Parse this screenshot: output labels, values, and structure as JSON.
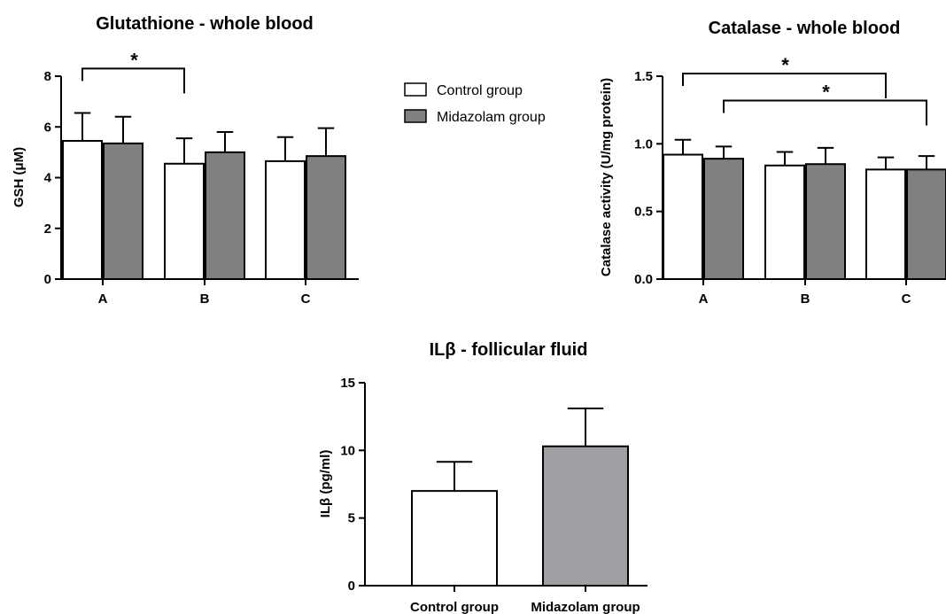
{
  "legend": {
    "items": [
      {
        "label": "Control group",
        "color": "#ffffff"
      },
      {
        "label": "Midazolam group",
        "color": "#808080"
      }
    ]
  },
  "chart_data": [
    {
      "id": "gsh",
      "type": "bar",
      "title": "Glutathione - whole blood",
      "ylabel": "GSH (μM)",
      "xlabel": "",
      "categories": [
        "A",
        "B",
        "C"
      ],
      "ylim": [
        0,
        8
      ],
      "yticks": [
        0,
        2,
        4,
        6,
        8
      ],
      "series": [
        {
          "name": "Control group",
          "color": "#ffffff",
          "values": [
            5.45,
            4.55,
            4.65
          ],
          "errors": [
            1.1,
            1.0,
            0.95
          ]
        },
        {
          "name": "Midazolam group",
          "color": "#808080",
          "values": [
            5.35,
            5.0,
            4.85
          ],
          "errors": [
            1.05,
            0.8,
            1.1
          ]
        }
      ],
      "annotations": [
        {
          "text": "*",
          "from_category": 0,
          "to_category": 1,
          "from_series": 0,
          "to_series": 0,
          "y": 8.3
        }
      ]
    },
    {
      "id": "catalase",
      "type": "bar",
      "title": "Catalase - whole blood",
      "ylabel": "Catalase activity (U/mg protein)",
      "xlabel": "",
      "categories": [
        "A",
        "B",
        "C"
      ],
      "ylim": [
        0,
        1.5
      ],
      "yticks": [
        "0.0",
        "0.5",
        "1.0",
        "1.5"
      ],
      "series": [
        {
          "name": "Control group",
          "color": "#ffffff",
          "values": [
            0.92,
            0.84,
            0.81
          ],
          "errors": [
            0.11,
            0.1,
            0.09
          ]
        },
        {
          "name": "Midazolam group",
          "color": "#808080",
          "values": [
            0.89,
            0.85,
            0.81
          ],
          "errors": [
            0.09,
            0.12,
            0.1
          ]
        }
      ],
      "annotations": [
        {
          "text": "*",
          "from_category": 0,
          "to_category": 2,
          "from_series": 0,
          "to_series": 0,
          "y": 1.52
        },
        {
          "text": "*",
          "from_category": 0,
          "to_category": 2,
          "from_series": 1,
          "to_series": 1,
          "y": 1.32
        }
      ]
    },
    {
      "id": "il",
      "type": "bar",
      "title": "ILβ - follicular fluid",
      "ylabel": "ILβ (pg/ml)",
      "xlabel": "",
      "categories": [
        "Control group",
        "Midazolam group"
      ],
      "ylim": [
        0,
        15
      ],
      "yticks": [
        0,
        5,
        10,
        15
      ],
      "colors": [
        "#ffffff",
        "#a0a0a4"
      ],
      "values": [
        7.0,
        10.3
      ],
      "errors": [
        2.15,
        2.8
      ],
      "annotations": []
    }
  ]
}
